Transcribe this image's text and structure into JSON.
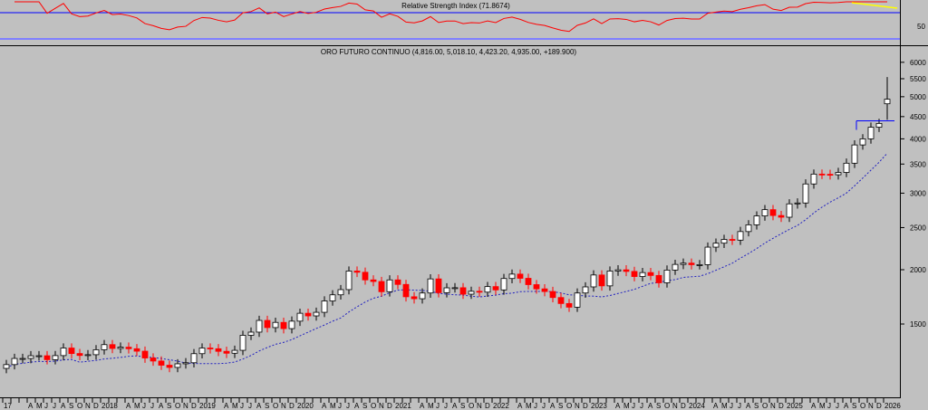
{
  "rsi_panel": {
    "title": "Relative Strength Index (71.8674)",
    "tick_label": "50",
    "levels": [
      30,
      70
    ],
    "period": 14
  },
  "chart_data": {
    "type": "candlestick",
    "title": "ORO FUTURO CONTINUO (4,816.00, 5,018.10, 4,423.20, 4,935.00, +189.900)",
    "y_scale": "log",
    "ylim": [
      1050,
      6300
    ],
    "y_ticks": [
      1500,
      2000,
      2500,
      3000,
      3500,
      4000,
      4500,
      5000,
      5500,
      6000
    ],
    "x_ticks": [
      "17",
      "",
      "",
      "A",
      "M",
      "J",
      "J",
      "A",
      "S",
      "O",
      "N",
      "D",
      "2018",
      "",
      "",
      "A",
      "M",
      "J",
      "J",
      "A",
      "S",
      "O",
      "N",
      "D",
      "2019",
      "",
      "",
      "A",
      "M",
      "J",
      "J",
      "A",
      "S",
      "O",
      "N",
      "D",
      "2020",
      "",
      "",
      "A",
      "M",
      "J",
      "J",
      "A",
      "S",
      "O",
      "N",
      "D",
      "2021",
      "",
      "",
      "A",
      "M",
      "J",
      "J",
      "A",
      "S",
      "O",
      "N",
      "D",
      "2022",
      "",
      "",
      "A",
      "M",
      "J",
      "J",
      "A",
      "S",
      "O",
      "N",
      "D",
      "2023",
      "",
      "",
      "A",
      "M",
      "J",
      "J",
      "A",
      "S",
      "O",
      "N",
      "D",
      "2024",
      "",
      "",
      "A",
      "M",
      "J",
      "J",
      "A",
      "S",
      "O",
      "N",
      "D",
      "2025",
      "",
      "",
      "A",
      "M",
      "J",
      "J",
      "A",
      "S",
      "O",
      "N",
      "D",
      "2026"
    ],
    "closes": [
      1210,
      1250,
      1250,
      1268,
      1268,
      1242,
      1269,
      1321,
      1283,
      1270,
      1275,
      1309,
      1345,
      1318,
      1327,
      1316,
      1299,
      1253,
      1233,
      1206,
      1192,
      1215,
      1222,
      1282,
      1321,
      1316,
      1298,
      1285,
      1305,
      1413,
      1437,
      1529,
      1472,
      1513,
      1464,
      1523,
      1588,
      1566,
      1596,
      1695,
      1751,
      1800,
      1986,
      1973,
      1895,
      1879,
      1780,
      1895,
      1850,
      1733,
      1715,
      1768,
      1905,
      1771,
      1817,
      1818,
      1757,
      1784,
      1776,
      1829,
      1797,
      1909,
      1954,
      1911,
      1848,
      1807,
      1782,
      1726,
      1672,
      1640,
      1768,
      1826,
      1945,
      1836,
      1986,
      1999,
      1982,
      1929,
      1970,
      1940,
      1866,
      1996,
      2057,
      2071,
      2054,
      2054,
      2254,
      2302,
      2348,
      2339,
      2448,
      2537,
      2659,
      2749,
      2665,
      2641,
      2835,
      2848,
      3150,
      3319,
      3315,
      3307,
      3348,
      3516,
      3873,
      4000,
      4254,
      4340,
      4935
    ],
    "last_bar": {
      "open": 4816.0,
      "high": 5018.1,
      "low": 4423.2,
      "close": 4935.0,
      "change": 189.9
    },
    "moving_average": {
      "style": "dashed",
      "color": "#2020c0"
    },
    "resistance_level": 4400,
    "colors": {
      "up": "#ffffff",
      "down": "#ff0000",
      "outline": "#000000",
      "rsi": "#ff0000",
      "rsi_levels": "#0000ff",
      "trendline": "#ffff00"
    },
    "grid": false
  }
}
